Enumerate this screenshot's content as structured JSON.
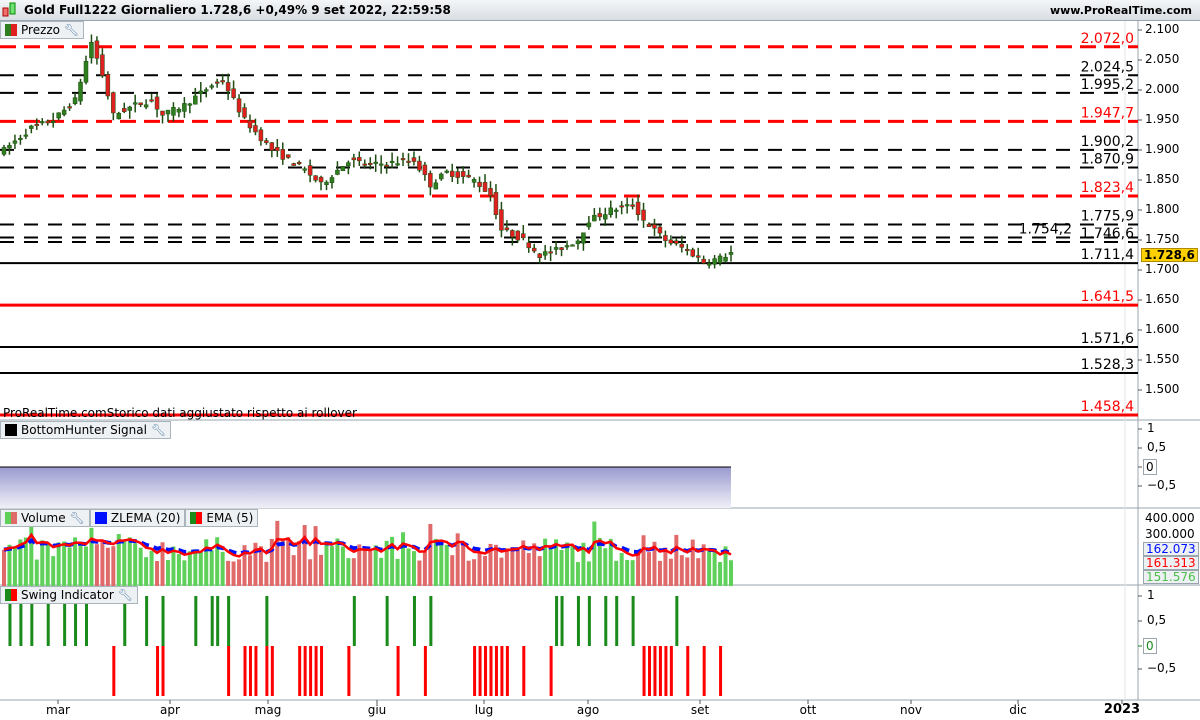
{
  "title": {
    "text": "Gold Full1222 Giornaliero 1.728,6 +0,49% 9 set 2022, 22:59:58",
    "site": "www.ProRealTime.com"
  },
  "panels": {
    "price": {
      "label": "Prezzo",
      "note": "ProRealTime.comStorico dati aggiustato rispetto ai rollover",
      "current": "1.728,6",
      "ticks": [
        "2.100",
        "2.050",
        "2.000",
        "1.950",
        "1.900",
        "1.850",
        "1.800",
        "1.750",
        "1.700",
        "1.650",
        "1.600",
        "1.550",
        "1.500"
      ]
    },
    "bottomhunter": {
      "label": "BottomHunter Signal",
      "ticks": [
        "1",
        "0,5",
        "0",
        "−0,5"
      ]
    },
    "volume": {
      "label": "Volume",
      "zlema": "ZLEMA (20)",
      "ema": "EMA (5)",
      "ticks": [
        "400.000",
        "300.000"
      ],
      "zlema_value": "162.073",
      "ema_value": "161.313",
      "volume_value": "151.576"
    },
    "swing": {
      "label": "Swing Indicator",
      "ticks": [
        "1",
        "0,5",
        "0",
        "−0,5"
      ]
    }
  },
  "xaxis": [
    "mar",
    "apr",
    "mag",
    "giu",
    "lug",
    "ago",
    "set",
    "ott",
    "nov",
    "dic",
    "2023"
  ],
  "colors": {
    "up": "#2e7d1e",
    "down": "#e02020",
    "vol_up": "#5fd05a",
    "vol_down": "#e06a6a",
    "level_red": "#ff0000",
    "tag": "#ffd000"
  },
  "chart_data": {
    "type": "candlestick",
    "levels": [
      {
        "value": 2072.0,
        "label": "2.072,0",
        "color": "red",
        "style": "dashed"
      },
      {
        "value": 2024.5,
        "label": "2.024,5",
        "color": "black",
        "style": "dashed"
      },
      {
        "value": 1995.2,
        "label": "1.995,2",
        "color": "black",
        "style": "dashed"
      },
      {
        "value": 1947.7,
        "label": "1.947,7",
        "color": "red",
        "style": "dashed"
      },
      {
        "value": 1900.2,
        "label": "1.900,2",
        "color": "black",
        "style": "dashed"
      },
      {
        "value": 1870.9,
        "label": "1.870,9",
        "color": "black",
        "style": "dashed"
      },
      {
        "value": 1823.4,
        "label": "1.823,4",
        "color": "red",
        "style": "dashed"
      },
      {
        "value": 1775.9,
        "label": "1.775,9",
        "color": "black",
        "style": "dashed"
      },
      {
        "value": 1754.2,
        "label": "1.754,2",
        "color": "black",
        "style": "dashed"
      },
      {
        "value": 1746.6,
        "label": "1.746,6",
        "color": "black",
        "style": "dashed"
      },
      {
        "value": 1711.4,
        "label": "1.711,4",
        "color": "black",
        "style": "solid"
      },
      {
        "value": 1641.5,
        "label": "1.641,5",
        "color": "red",
        "style": "solid"
      },
      {
        "value": 1571.6,
        "label": "1.571,6",
        "color": "black",
        "style": "solid"
      },
      {
        "value": 1528.3,
        "label": "1.528,3",
        "color": "black",
        "style": "solid"
      },
      {
        "value": 1458.4,
        "label": "1.458,4",
        "color": "red",
        "style": "solid"
      }
    ],
    "ylim": [
      1450,
      2115
    ],
    "close_keypoints": [
      [
        0,
        1900
      ],
      [
        5,
        1937
      ],
      [
        9,
        1950
      ],
      [
        13,
        1983
      ],
      [
        16,
        2080
      ],
      [
        18,
        2025
      ],
      [
        20,
        1958
      ],
      [
        24,
        1975
      ],
      [
        27,
        1983
      ],
      [
        29,
        1958
      ],
      [
        33,
        1975
      ],
      [
        38,
        2008
      ],
      [
        40,
        2017
      ],
      [
        44,
        1950
      ],
      [
        49,
        1900
      ],
      [
        55,
        1867
      ],
      [
        58,
        1842
      ],
      [
        63,
        1883
      ],
      [
        67,
        1875
      ],
      [
        75,
        1883
      ],
      [
        78,
        1842
      ],
      [
        81,
        1863
      ],
      [
        86,
        1850
      ],
      [
        89,
        1825
      ],
      [
        91,
        1767
      ],
      [
        95,
        1750
      ],
      [
        98,
        1725
      ],
      [
        101,
        1733
      ],
      [
        105,
        1750
      ],
      [
        107,
        1783
      ],
      [
        111,
        1800
      ],
      [
        115,
        1808
      ],
      [
        117,
        1783
      ],
      [
        121,
        1750
      ],
      [
        125,
        1733
      ],
      [
        128,
        1713
      ],
      [
        131,
        1720
      ],
      [
        133,
        1728.6
      ]
    ],
    "swing_up": [
      1,
      3,
      5,
      8,
      11,
      13,
      15,
      22,
      26,
      29,
      35,
      38,
      39,
      41,
      48,
      64,
      70,
      75,
      78,
      101,
      102,
      105,
      107,
      110,
      112,
      115,
      123
    ],
    "swing_down": [
      20,
      28,
      29,
      41,
      44,
      45,
      46,
      48,
      49,
      54,
      55,
      56,
      57,
      58,
      63,
      72,
      77,
      86,
      87,
      88,
      88,
      89,
      90,
      91,
      92,
      95,
      100,
      117,
      118,
      119,
      120,
      121,
      122,
      125,
      128,
      131
    ]
  }
}
